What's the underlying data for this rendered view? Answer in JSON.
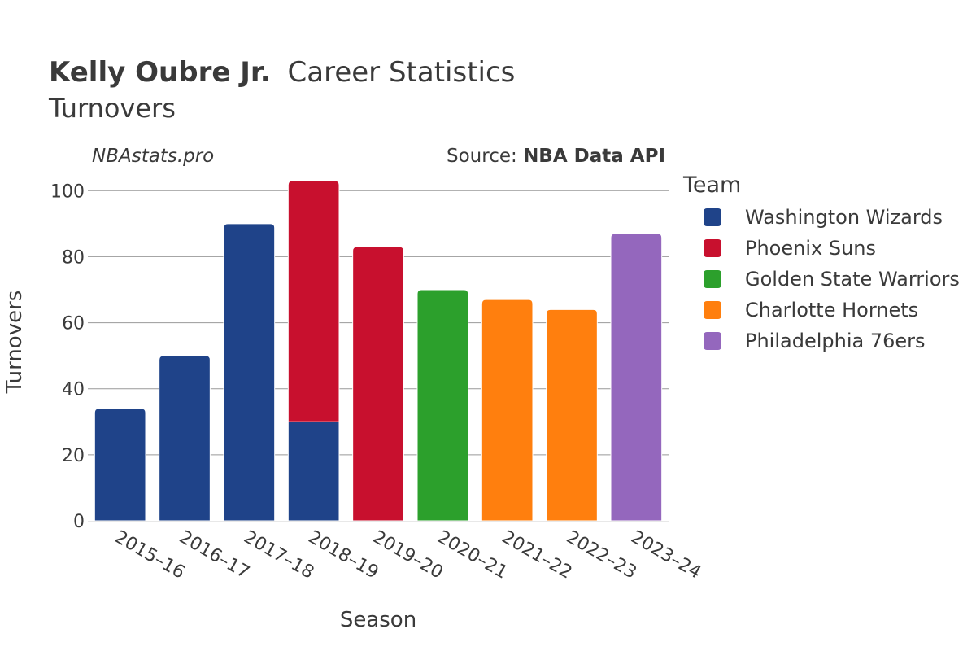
{
  "header": {
    "title_bold": "Kelly Oubre Jr.",
    "title_rest": "Career Statistics",
    "subtitle": "Turnovers",
    "watermark": "NBAstats.pro",
    "source_prefix": "Source: ",
    "source_name": "NBA Data API"
  },
  "legend": {
    "title": "Team"
  },
  "chart_data": {
    "type": "bar",
    "stacked": true,
    "xlabel": "Season",
    "ylabel": "Turnovers",
    "ylim": [
      0,
      105
    ],
    "yticks": [
      0,
      20,
      40,
      60,
      80,
      100
    ],
    "grid": true,
    "legend_position": "right",
    "categories": [
      "2015–16",
      "2016–17",
      "2017–18",
      "2018–19",
      "2019–20",
      "2020–21",
      "2021–22",
      "2022–23",
      "2023–24"
    ],
    "series": [
      {
        "name": "Washington Wizards",
        "color": "#1f4389",
        "values": [
          34,
          50,
          90,
          30,
          0,
          0,
          0,
          0,
          0
        ]
      },
      {
        "name": "Phoenix Suns",
        "color": "#c8102e",
        "values": [
          0,
          0,
          0,
          73,
          83,
          0,
          0,
          0,
          0
        ]
      },
      {
        "name": "Golden State Warriors",
        "color": "#2ca02c",
        "values": [
          0,
          0,
          0,
          0,
          0,
          70,
          0,
          0,
          0
        ]
      },
      {
        "name": "Charlotte Hornets",
        "color": "#ff7f0e",
        "values": [
          0,
          0,
          0,
          0,
          0,
          0,
          67,
          64,
          0
        ]
      },
      {
        "name": "Philadelphia 76ers",
        "color": "#9467bd",
        "values": [
          0,
          0,
          0,
          0,
          0,
          0,
          0,
          0,
          87
        ]
      }
    ]
  }
}
